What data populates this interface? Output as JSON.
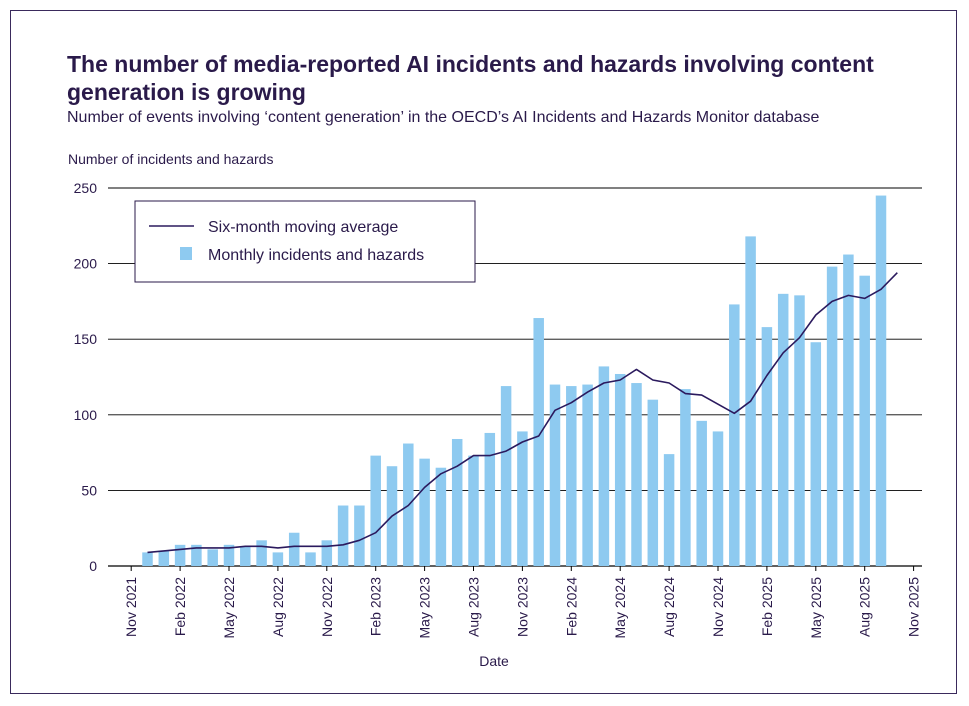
{
  "title": "The number of media-reported AI incidents and hazards involving content generation is growing",
  "subtitle": "Number of events involving ‘content generation’ in the OECD’s AI Incidents and Hazards Monitor database",
  "colors": {
    "bar": "#8ecaf0",
    "line": "#2b1a5e",
    "text": "#2a1a4a",
    "grid": "#000000"
  },
  "chart_data": {
    "type": "bar",
    "ylabel": "Number of incidents and hazards",
    "xlabel": "Date",
    "ylim": [
      0,
      250
    ],
    "yticks": [
      0,
      50,
      100,
      150,
      200,
      250
    ],
    "grid": true,
    "legend_position": "top-left",
    "x_tick_labels": [
      "Nov 2021",
      "Feb 2022",
      "May 2022",
      "Aug 2022",
      "Nov 2022",
      "Feb 2023",
      "May 2023",
      "Aug 2023",
      "Nov 2023",
      "Feb 2024",
      "May 2024",
      "Aug 2024",
      "Nov 2024",
      "Feb 2025",
      "May 2025",
      "Aug 2025",
      "Nov 2025"
    ],
    "months": [
      "Dec 2021",
      "Jan 2022",
      "Feb 2022",
      "Mar 2022",
      "Apr 2022",
      "May 2022",
      "Jun 2022",
      "Jul 2022",
      "Aug 2022",
      "Sep 2022",
      "Oct 2022",
      "Nov 2022",
      "Dec 2022",
      "Jan 2023",
      "Feb 2023",
      "Mar 2023",
      "Apr 2023",
      "May 2023",
      "Jun 2023",
      "Jul 2023",
      "Aug 2023",
      "Sep 2023",
      "Oct 2023",
      "Nov 2023",
      "Dec 2023",
      "Jan 2024",
      "Feb 2024",
      "Mar 2024",
      "Apr 2024",
      "May 2024",
      "Jun 2024",
      "Jul 2024",
      "Aug 2024",
      "Sep 2024",
      "Oct 2024",
      "Nov 2024",
      "Dec 2024",
      "Jan 2025",
      "Feb 2025",
      "Mar 2025",
      "Apr 2025",
      "May 2025",
      "Jun 2025",
      "Jul 2025",
      "Aug 2025",
      "Sep 2025",
      "Oct 2025"
    ],
    "series": [
      {
        "name": "Monthly incidents and hazards",
        "type": "bar",
        "values": [
          9,
          10,
          14,
          14,
          11,
          14,
          13,
          17,
          9,
          22,
          9,
          17,
          40,
          40,
          73,
          66,
          81,
          71,
          65,
          84,
          73,
          88,
          119,
          89,
          164,
          120,
          119,
          120,
          132,
          127,
          121,
          110,
          74,
          117,
          96,
          89,
          173,
          218,
          158,
          180,
          179,
          148,
          198,
          206,
          192,
          245,
          0
        ]
      },
      {
        "name": "Six-month moving average",
        "type": "line",
        "values": [
          9,
          10,
          11,
          12,
          12,
          12,
          13,
          13,
          12,
          13,
          13,
          13,
          14,
          17,
          22,
          33,
          40,
          52,
          61,
          66,
          73,
          73,
          76,
          82,
          86,
          103,
          108,
          115,
          121,
          123,
          130,
          123,
          121,
          114,
          113,
          107,
          101,
          109,
          126,
          141,
          151,
          166,
          175,
          179,
          177,
          183,
          194
        ]
      }
    ]
  }
}
